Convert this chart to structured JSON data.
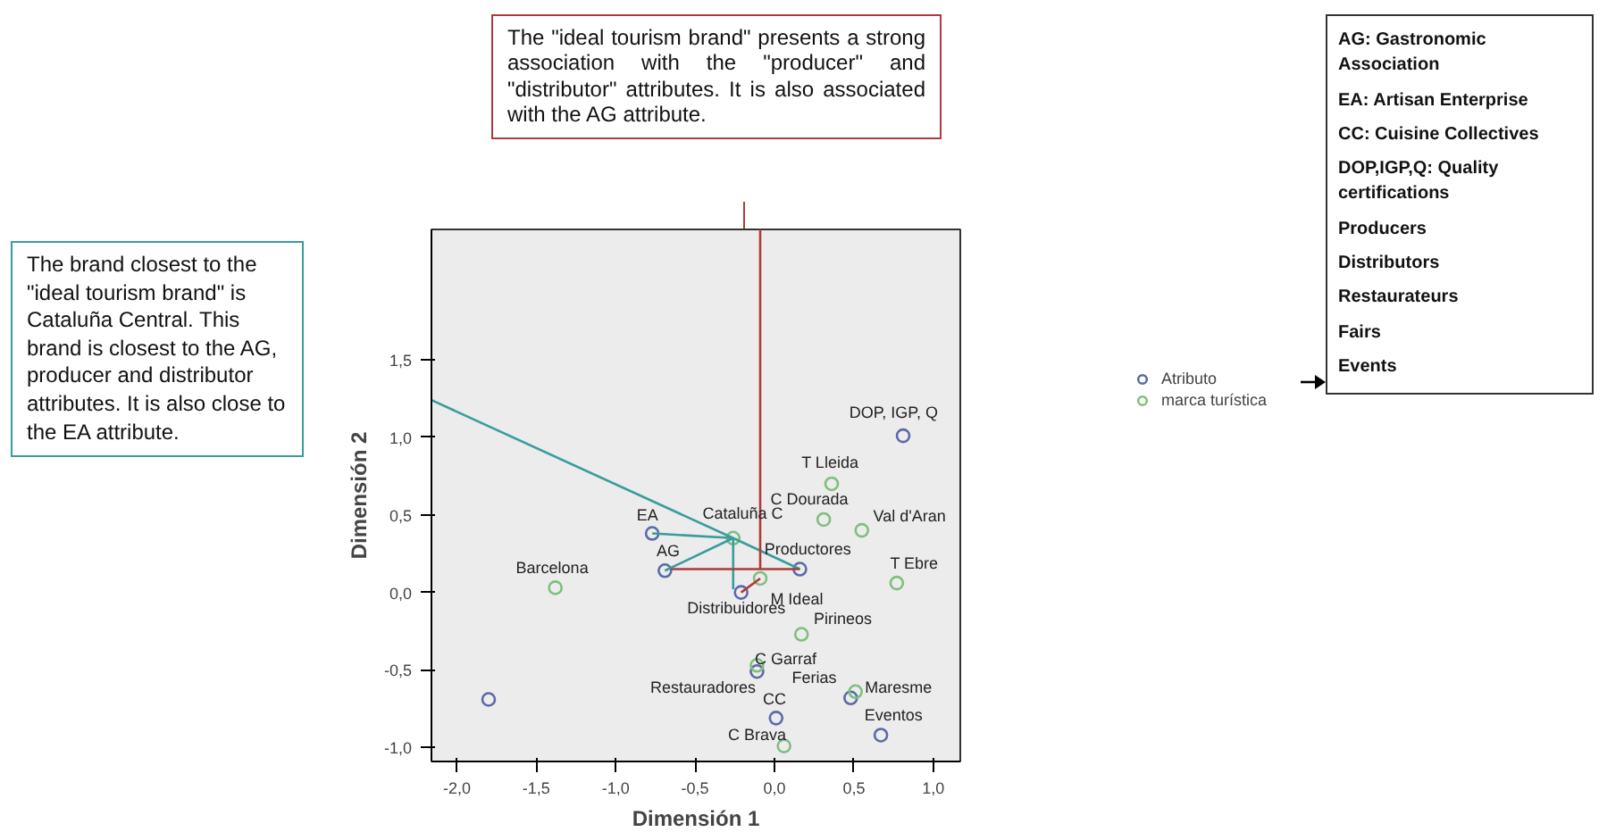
{
  "chart_data": {
    "type": "scatter",
    "xlabel": "Dimensión 1",
    "ylabel": "Dimensión 2",
    "xlim": [
      -2.16,
      1.17
    ],
    "ylim": [
      -1.09,
      2.34
    ],
    "xticks": [
      {
        "value": -2.0,
        "label": "-2,0"
      },
      {
        "value": -1.5,
        "label": "-1,5"
      },
      {
        "value": -1.0,
        "label": "-1,0"
      },
      {
        "value": -0.5,
        "label": "-0,5"
      },
      {
        "value": 0.0,
        "label": "0,0"
      },
      {
        "value": 0.5,
        "label": "0,5"
      },
      {
        "value": 1.0,
        "label": "1,0"
      }
    ],
    "yticks": [
      {
        "value": -1.0,
        "label": "-1,0"
      },
      {
        "value": -0.5,
        "label": "-0,5"
      },
      {
        "value": 0.0,
        "label": "0,0"
      },
      {
        "value": 0.5,
        "label": "0,5"
      },
      {
        "value": 1.0,
        "label": "1,0"
      },
      {
        "value": 1.5,
        "label": "1,5"
      }
    ],
    "grid": false,
    "legend": "right",
    "marker": "circle",
    "series": [
      {
        "name": "Atributo",
        "color": "#5b6aa8",
        "x": [
          0.81,
          -0.77,
          -0.69,
          0.16,
          -0.21,
          -1.8,
          -0.11,
          0.01,
          0.48,
          0.67
        ],
        "values": [
          1.01,
          0.38,
          0.14,
          0.15,
          0.0,
          -0.69,
          -0.51,
          -0.81,
          -0.68,
          -0.92
        ]
      },
      {
        "name": "marca turística",
        "color": "#7fbf7f",
        "x": [
          0.36,
          0.31,
          0.55,
          -0.26,
          -0.09,
          -1.38,
          0.77,
          0.17,
          -0.11,
          0.51,
          0.06
        ],
        "values": [
          0.7,
          0.47,
          0.4,
          0.35,
          0.09,
          0.03,
          0.06,
          -0.27,
          -0.47,
          -0.64,
          -0.99
        ]
      },
      {
        "type": "line",
        "marker": "none",
        "color": "#3a9c9c",
        "x": [
          -0.26,
          -0.77
        ],
        "values": [
          0.35,
          0.38
        ]
      },
      {
        "type": "line",
        "marker": "none",
        "color": "#3a9c9c",
        "x": [
          -0.26,
          -0.69
        ],
        "values": [
          0.35,
          0.14
        ]
      },
      {
        "type": "line",
        "marker": "none",
        "color": "#3a9c9c",
        "x": [
          -0.26,
          0.16
        ],
        "values": [
          0.35,
          0.15
        ]
      },
      {
        "type": "line",
        "marker": "none",
        "color": "#3a9c9c",
        "x": [
          -0.26,
          -0.26
        ],
        "values": [
          0.35,
          0.02
        ]
      },
      {
        "type": "line",
        "marker": "none",
        "color": "#3a9c9c",
        "x": [
          -0.26,
          -2.16
        ],
        "values": [
          0.35,
          1.24
        ]
      },
      {
        "type": "line",
        "marker": "none",
        "color": "#b03a3a",
        "x": [
          -0.65,
          0.16
        ],
        "values": [
          0.15,
          0.15
        ]
      },
      {
        "type": "line",
        "marker": "none",
        "color": "#b03a3a",
        "x": [
          -0.09,
          -0.09
        ],
        "values": [
          2.34,
          0.15
        ]
      },
      {
        "type": "line",
        "marker": "none",
        "color": "#b03a3a",
        "x": [
          -0.09,
          -0.21
        ],
        "values": [
          0.09,
          0.0
        ]
      }
    ],
    "annotations": [
      "The \"ideal tourism brand\" presents a strong association with the \"producer\" and \"distributor\" attributes. It is also associated with the AG attribute.",
      "The brand closest to the \"ideal tourism brand\" is Cataluña Central. This brand is closest to the AG, producer and distributor attributes. It is also close to the EA attribute.",
      "AG: Gastronomic Association",
      "EA: Artisan Enterprise",
      "CC: Cuisine Collectives",
      "DOP,IGP,Q: Quality certifications",
      "Producers",
      "Distributors",
      "Restaurateurs",
      "Fairs",
      "Events",
      {
        "text": "DOP, IGP, Q",
        "x": 0.81,
        "y": 1.01
      },
      {
        "text": "EA",
        "x": -0.77,
        "y": 0.38
      },
      {
        "text": "AG",
        "x": -0.69,
        "y": 0.14
      },
      {
        "text": "Productores",
        "x": 0.16,
        "y": 0.15
      },
      {
        "text": "Distribuidores",
        "x": -0.21,
        "y": 0.0
      },
      {
        "text": "Restauradores",
        "x": -0.11,
        "y": -0.51
      },
      {
        "text": "CC",
        "x": 0.01,
        "y": -0.81
      },
      {
        "text": "Ferias",
        "x": 0.48,
        "y": -0.68
      },
      {
        "text": "Eventos",
        "x": 0.67,
        "y": -0.92
      },
      {
        "text": "T Lleida",
        "x": 0.36,
        "y": 0.7
      },
      {
        "text": "C Dourada",
        "x": 0.31,
        "y": 0.47
      },
      {
        "text": "Val d'Aran",
        "x": 0.55,
        "y": 0.4
      },
      {
        "text": "Cataluña C",
        "x": -0.26,
        "y": 0.35
      },
      {
        "text": "M Ideal",
        "x": -0.09,
        "y": 0.09
      },
      {
        "text": "Barcelona",
        "x": -1.38,
        "y": 0.03
      },
      {
        "text": "T Ebre",
        "x": 0.77,
        "y": 0.06
      },
      {
        "text": "Pirineos",
        "x": 0.17,
        "y": -0.27
      },
      {
        "text": "C Garraf",
        "x": -0.11,
        "y": -0.47
      },
      {
        "text": "Maresme",
        "x": 0.51,
        "y": -0.64
      },
      {
        "text": "C Brava",
        "x": 0.06,
        "y": -0.99
      }
    ]
  }
}
